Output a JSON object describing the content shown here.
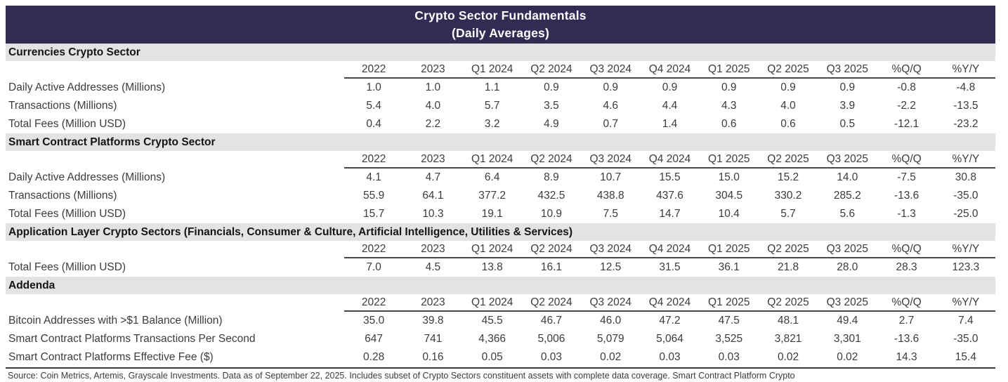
{
  "banner": {
    "line1": "Crypto Sector Fundamentals",
    "line2": "(Daily Averages)"
  },
  "chart_data": {
    "type": "table",
    "title": "Crypto Sector Fundamentals (Daily Averages)",
    "columns": [
      "2022",
      "2023",
      "Q1 2024",
      "Q2 2024",
      "Q3 2024",
      "Q4 2024",
      "Q1 2025",
      "Q2 2025",
      "Q3 2025",
      "%Q/Q",
      "%Y/Y"
    ],
    "sections": [
      {
        "header": "Currencies Crypto Sector",
        "rows": [
          {
            "label": "Daily Active Addresses (Millions)",
            "values": [
              "1.0",
              "1.0",
              "1.1",
              "0.9",
              "0.9",
              "0.9",
              "0.9",
              "0.9",
              "0.9",
              "-0.8",
              "-4.8"
            ]
          },
          {
            "label": "Transactions (Millions)",
            "values": [
              "5.4",
              "4.0",
              "5.7",
              "3.5",
              "4.6",
              "4.4",
              "4.3",
              "4.0",
              "3.9",
              "-2.2",
              "-13.5"
            ]
          },
          {
            "label": "Total Fees (Million USD)",
            "values": [
              "0.4",
              "2.2",
              "3.2",
              "4.9",
              "0.7",
              "1.4",
              "0.6",
              "0.6",
              "0.5",
              "-12.1",
              "-23.2"
            ]
          }
        ]
      },
      {
        "header": "Smart Contract Platforms Crypto Sector",
        "rows": [
          {
            "label": "Daily Active Addresses (Millions)",
            "values": [
              "4.1",
              "4.7",
              "6.4",
              "8.9",
              "10.7",
              "15.5",
              "15.0",
              "15.2",
              "14.0",
              "-7.5",
              "30.8"
            ]
          },
          {
            "label": "Transactions (Millions)",
            "values": [
              "55.9",
              "64.1",
              "377.2",
              "432.5",
              "438.8",
              "437.6",
              "304.5",
              "330.2",
              "285.2",
              "-13.6",
              "-35.0"
            ]
          },
          {
            "label": "Total Fees (Million USD)",
            "values": [
              "15.7",
              "10.3",
              "19.1",
              "10.9",
              "7.5",
              "14.7",
              "10.4",
              "5.7",
              "5.6",
              "-1.3",
              "-25.0"
            ]
          }
        ]
      },
      {
        "header": "Application Layer Crypto Sectors (Financials, Consumer & Culture, Artificial Intelligence, Utilities & Services)",
        "rows": [
          {
            "label": "Total Fees (Million USD)",
            "values": [
              "7.0",
              "4.5",
              "13.8",
              "16.1",
              "12.5",
              "31.5",
              "36.1",
              "21.8",
              "28.0",
              "28.3",
              "123.3"
            ]
          }
        ]
      },
      {
        "header": "Addenda",
        "rows": [
          {
            "label": "Bitcoin Addresses with >$1 Balance (Million)",
            "values": [
              "35.0",
              "39.8",
              "45.5",
              "46.7",
              "46.0",
              "47.2",
              "47.5",
              "48.1",
              "49.4",
              "2.7",
              "7.4"
            ]
          },
          {
            "label": "Smart Contract Platforms Transactions Per Second",
            "values": [
              "647",
              "741",
              "4,366",
              "5,006",
              "5,079",
              "5,064",
              "3,525",
              "3,821",
              "3,301",
              "-13.6",
              "-35.0"
            ]
          },
          {
            "label": "Smart Contract Platforms Effective Fee ($)",
            "values": [
              "0.28",
              "0.16",
              "0.05",
              "0.03",
              "0.02",
              "0.03",
              "0.03",
              "0.02",
              "0.02",
              "14.3",
              "15.4"
            ]
          }
        ]
      }
    ]
  },
  "footer": {
    "source": "Source: Coin Metrics, Artemis, Grayscale Investments. Data as of September 22, 2025. Includes subset of Crypto Sectors constituent assets with complete data coverage. Smart Contract Platform Crypto"
  },
  "colors": {
    "banner_bg": "#322b54",
    "section_band_bg": "#e3e3e3",
    "rule": "#474747",
    "text": "#3c3c3c"
  }
}
